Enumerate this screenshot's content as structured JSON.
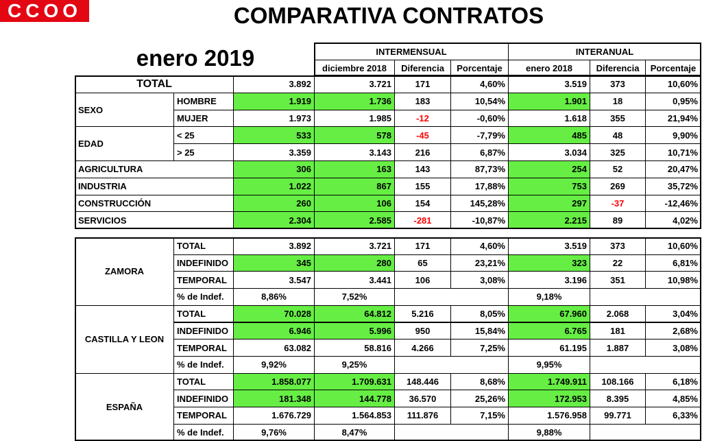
{
  "header": {
    "logo": "CCOO",
    "title": "COMPARATIVA CONTRATOS",
    "period": "enero 2019"
  },
  "table1": {
    "groups": [
      "INTERMENSUAL",
      "INTERANUAL"
    ],
    "columns": [
      "diciembre 2018",
      "Diferencia",
      "Porcentaje",
      "enero 2018",
      "Diferencia",
      "Porcentaje"
    ],
    "total": {
      "label": "TOTAL",
      "values": [
        "3.892",
        "3.721",
        "171",
        "4,60%",
        "3.519",
        "373",
        "10,60%"
      ]
    },
    "blocks": [
      {
        "label": "SEXO",
        "rows": [
          {
            "label": "HOMBRE",
            "values": [
              "1.919",
              "1.736",
              "183",
              "10,54%",
              "1.901",
              "18",
              "0,95%"
            ],
            "highlight": true
          },
          {
            "label": "MUJER",
            "values": [
              "1.973",
              "1.985",
              "-12",
              "-0,60%",
              "1.618",
              "355",
              "21,94%"
            ],
            "highlight": false
          }
        ]
      },
      {
        "label": "EDAD",
        "rows": [
          {
            "label": "< 25",
            "values": [
              "533",
              "578",
              "-45",
              "-7,79%",
              "485",
              "48",
              "9,90%"
            ],
            "highlight": true
          },
          {
            "label": "> 25",
            "values": [
              "3.359",
              "3.143",
              "216",
              "6,87%",
              "3.034",
              "325",
              "10,71%"
            ],
            "highlight": false
          }
        ]
      }
    ],
    "sectors": [
      {
        "label": "AGRICULTURA",
        "values": [
          "306",
          "163",
          "143",
          "87,73%",
          "254",
          "52",
          "20,47%"
        ],
        "highlight": true
      },
      {
        "label": "INDUSTRIA",
        "values": [
          "1.022",
          "867",
          "155",
          "17,88%",
          "753",
          "269",
          "35,72%"
        ],
        "highlight": true
      },
      {
        "label": "CONSTRUCCIÓN",
        "values": [
          "260",
          "106",
          "154",
          "145,28%",
          "297",
          "-37",
          "-12,46%"
        ],
        "highlight": true
      },
      {
        "label": "SERVICIOS",
        "values": [
          "2.304",
          "2.585",
          "-281",
          "-10,87%",
          "2.215",
          "89",
          "4,02%"
        ],
        "highlight": true
      }
    ]
  },
  "table2": {
    "regions": [
      {
        "label": "ZAMORA",
        "rows": [
          {
            "label": "TOTAL",
            "values": [
              "3.892",
              "3.721",
              "171",
              "4,60%",
              "3.519",
              "373",
              "10,60%"
            ],
            "highlight": false
          },
          {
            "label": "INDEFINIDO",
            "values": [
              "345",
              "280",
              "65",
              "23,21%",
              "323",
              "22",
              "6,81%"
            ],
            "highlight": true
          },
          {
            "label": "TEMPORAL",
            "values": [
              "3.547",
              "3.441",
              "106",
              "3,08%",
              "3.196",
              "351",
              "10,98%"
            ],
            "highlight": false
          }
        ],
        "share": {
          "label": "% de Indef.",
          "values": [
            "8,86%",
            "7,52%",
            "9,18%"
          ]
        }
      },
      {
        "label": "CASTILLA Y LEON",
        "rows": [
          {
            "label": "TOTAL",
            "values": [
              "70.028",
              "64.812",
              "5.216",
              "8,05%",
              "67.960",
              "2.068",
              "3,04%"
            ],
            "highlight": true
          },
          {
            "label": "INDEFINIDO",
            "values": [
              "6.946",
              "5.996",
              "950",
              "15,84%",
              "6.765",
              "181",
              "2,68%"
            ],
            "highlight": true
          },
          {
            "label": "TEMPORAL",
            "values": [
              "63.082",
              "58.816",
              "4.266",
              "7,25%",
              "61.195",
              "1.887",
              "3,08%"
            ],
            "highlight": false
          }
        ],
        "share": {
          "label": "% de Indef.",
          "values": [
            "9,92%",
            "9,25%",
            "9,95%"
          ]
        }
      },
      {
        "label": "ESPAÑA",
        "rows": [
          {
            "label": "TOTAL",
            "values": [
              "1.858.077",
              "1.709.631",
              "148.446",
              "8,68%",
              "1.749.911",
              "108.166",
              "6,18%"
            ],
            "highlight": true
          },
          {
            "label": "INDEFINIDO",
            "values": [
              "181.348",
              "144.778",
              "36.570",
              "25,26%",
              "172.953",
              "8.395",
              "4,85%"
            ],
            "highlight": true
          },
          {
            "label": "TEMPORAL",
            "values": [
              "1.676.729",
              "1.564.853",
              "111.876",
              "7,15%",
              "1.576.958",
              "99.771",
              "6,33%"
            ],
            "highlight": false
          }
        ],
        "share": {
          "label": "% de Indef.",
          "values": [
            "9,76%",
            "8,47%",
            "9,88%"
          ]
        }
      }
    ]
  }
}
